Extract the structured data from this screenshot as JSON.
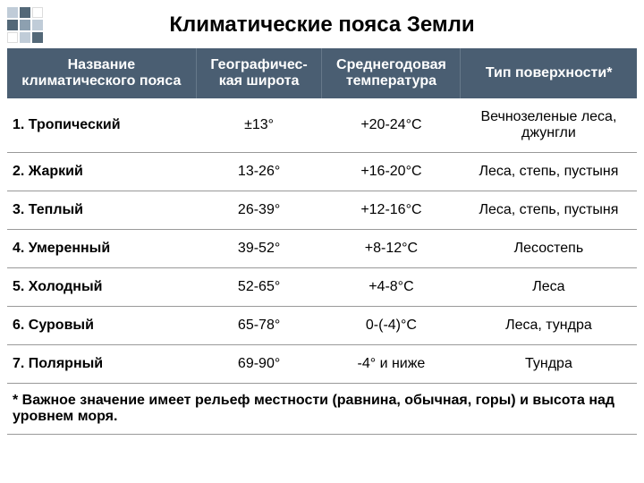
{
  "title": "Климатические пояса Земли",
  "table": {
    "columns": [
      "Название климатического пояса",
      "Географичес-кая широта",
      "Среднегодовая температура",
      "Тип поверхности*"
    ],
    "rows": [
      {
        "name": "1. Тропический",
        "latitude": "±13°",
        "temperature": "+20-24°С",
        "surface": "Вечнозеленые леса, джунгли"
      },
      {
        "name": "2. Жаркий",
        "latitude": "13-26°",
        "temperature": "+16-20°С",
        "surface": "Леса, степь, пустыня"
      },
      {
        "name": "3. Теплый",
        "latitude": "26-39°",
        "temperature": "+12-16°С",
        "surface": "Леса, степь, пустыня"
      },
      {
        "name": "4. Умеренный",
        "latitude": "39-52°",
        "temperature": "+8-12°С",
        "surface": "Лесостепь"
      },
      {
        "name": "5. Холодный",
        "latitude": "52-65°",
        "temperature": "+4-8°С",
        "surface": "Леса"
      },
      {
        "name": "6. Суровый",
        "latitude": "65-78°",
        "temperature": "0-(-4)°С",
        "surface": "Леса, тундра"
      },
      {
        "name": "7. Полярный",
        "latitude": "69-90°",
        "temperature": "-4° и ниже",
        "surface": "Тундра"
      }
    ],
    "footnote": "* Важное значение имеет рельеф местности (равнина, обычная, горы) и высота над уровнем моря."
  },
  "styling": {
    "header_bg": "#4a5e72",
    "header_text": "#ffffff",
    "border_color": "#999999",
    "font_family": "Arial",
    "title_fontsize": 24,
    "cell_fontsize": 16,
    "logo_colors": [
      "#536878",
      "#8da0b0",
      "#c0ccd8",
      "#ffffff"
    ]
  }
}
